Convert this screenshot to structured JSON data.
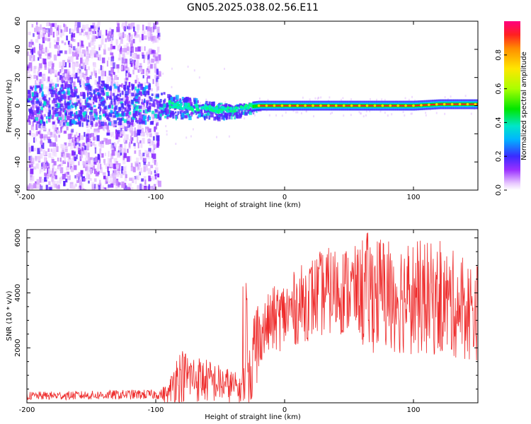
{
  "title": "GN05.2025.038.02.56.E11",
  "chart_data": [
    {
      "type": "heatmap",
      "xlabel": "Height of straight line (km)",
      "ylabel": "Frequency (Hz)",
      "xlim": [
        -200,
        150
      ],
      "ylim": [
        -60,
        60
      ],
      "xticks": [
        -200,
        -100,
        0,
        100
      ],
      "yticks": [
        -60,
        -40,
        -20,
        0,
        20,
        40,
        60
      ],
      "colorbar": {
        "label": "Normalized spectral amplitude",
        "range": [
          0,
          1
        ],
        "ticks": [
          "0.0",
          "0.2",
          "0.4",
          "0.6",
          "0.8"
        ]
      },
      "signal_trace": {
        "x": [
          -130,
          -100,
          -90,
          -80,
          -70,
          -60,
          -50,
          -40,
          -30,
          -20,
          -10,
          0,
          20,
          40,
          60,
          80,
          100,
          120,
          150
        ],
        "frequency": [
          2,
          2,
          1,
          0,
          -1,
          -2,
          -3,
          -3,
          -1,
          0,
          0,
          0,
          0,
          0,
          0,
          0,
          0,
          1,
          1
        ]
      }
    },
    {
      "type": "line",
      "xlabel": "Height of straight line (km)",
      "ylabel": "SNR (10 * v/v)",
      "xlim": [
        -200,
        150
      ],
      "ylim": [
        0,
        6300
      ],
      "xticks": [
        -200,
        -100,
        0,
        100
      ],
      "yticks": [
        2000,
        4000,
        6000
      ],
      "series": [
        {
          "color": "#ee2a2a",
          "x": [
            -200,
            -180,
            -160,
            -140,
            -120,
            -100,
            -90,
            -85,
            -80,
            -70,
            -60,
            -50,
            -40,
            -35,
            -30,
            -25,
            -20,
            -15,
            -10,
            0,
            10,
            20,
            30,
            40,
            50,
            60,
            70,
            80,
            90,
            100,
            110,
            120,
            130,
            140,
            150
          ],
          "values": [
            250,
            260,
            270,
            280,
            300,
            300,
            320,
            900,
            1000,
            900,
            800,
            700,
            600,
            500,
            900,
            1600,
            2400,
            2700,
            3000,
            3200,
            3500,
            3800,
            4000,
            4100,
            4100,
            4050,
            4000,
            3950,
            3900,
            3850,
            3800,
            3700,
            3600,
            3400,
            3300
          ]
        }
      ]
    }
  ]
}
